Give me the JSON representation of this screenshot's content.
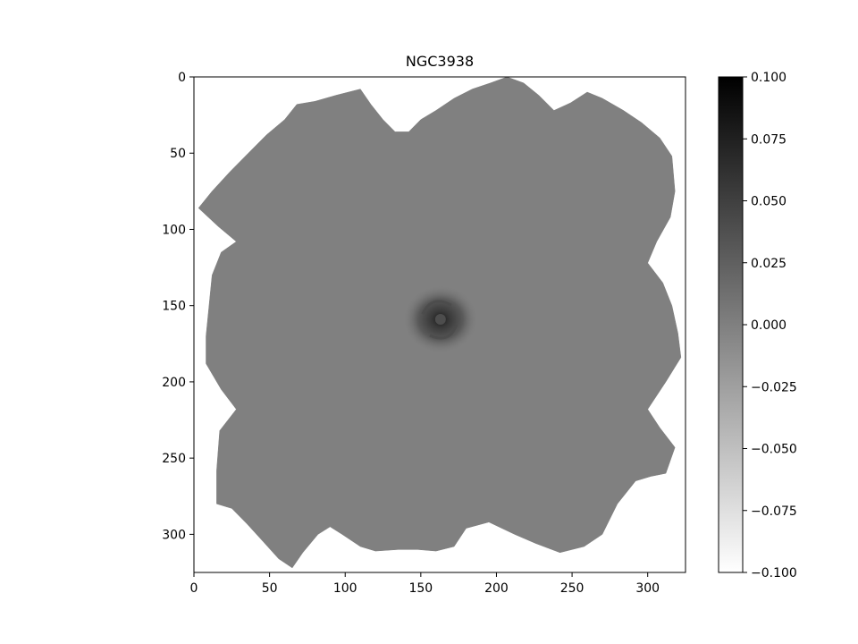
{
  "chart_data": {
    "type": "heatmap",
    "title": "NGC3938",
    "xlabel": "",
    "ylabel": "",
    "colormap": "gray_r",
    "colorbar_range": [
      -0.1,
      0.1
    ],
    "x_range": [
      0,
      325
    ],
    "y_range": [
      325,
      0
    ],
    "x_ticks": [
      0,
      50,
      100,
      150,
      200,
      250,
      300
    ],
    "y_ticks": [
      0,
      50,
      100,
      150,
      200,
      250,
      300
    ],
    "x_tick_labels": [
      "0",
      "50",
      "100",
      "150",
      "200",
      "250",
      "300"
    ],
    "y_tick_labels": [
      "0",
      "50",
      "100",
      "150",
      "200",
      "250",
      "300"
    ],
    "colorbar_ticks": [
      0.1,
      0.075,
      0.05,
      0.025,
      0.0,
      -0.025,
      -0.05,
      -0.075,
      -0.1
    ],
    "colorbar_tick_labels": [
      "0.100",
      "0.075",
      "0.050",
      "0.025",
      "0.000",
      "−0.025",
      "−0.050",
      "−0.075",
      "−0.100"
    ],
    "background_value": 0.0,
    "footprint_polygon": [
      [
        3,
        86
      ],
      [
        12,
        75
      ],
      [
        24,
        62
      ],
      [
        36,
        50
      ],
      [
        48,
        38
      ],
      [
        60,
        28
      ],
      [
        68,
        18
      ],
      [
        80,
        16
      ],
      [
        94,
        12
      ],
      [
        110,
        8
      ],
      [
        117,
        18
      ],
      [
        125,
        28
      ],
      [
        133,
        36
      ],
      [
        142,
        36
      ],
      [
        150,
        28
      ],
      [
        160,
        22
      ],
      [
        172,
        14
      ],
      [
        184,
        8
      ],
      [
        196,
        4
      ],
      [
        207,
        0
      ],
      [
        218,
        4
      ],
      [
        228,
        12
      ],
      [
        238,
        22
      ],
      [
        249,
        17
      ],
      [
        260,
        10
      ],
      [
        270,
        14
      ],
      [
        284,
        22
      ],
      [
        296,
        30
      ],
      [
        308,
        40
      ],
      [
        316,
        52
      ],
      [
        318,
        75
      ],
      [
        315,
        92
      ],
      [
        306,
        108
      ],
      [
        300,
        122
      ],
      [
        310,
        135
      ],
      [
        316,
        150
      ],
      [
        320,
        168
      ],
      [
        322,
        184
      ],
      [
        312,
        200
      ],
      [
        300,
        218
      ],
      [
        308,
        230
      ],
      [
        318,
        243
      ],
      [
        312,
        260
      ],
      [
        302,
        262
      ],
      [
        292,
        265
      ],
      [
        280,
        280
      ],
      [
        270,
        300
      ],
      [
        258,
        308
      ],
      [
        242,
        312
      ],
      [
        226,
        306
      ],
      [
        212,
        300
      ],
      [
        195,
        292
      ],
      [
        180,
        296
      ],
      [
        172,
        308
      ],
      [
        160,
        311
      ],
      [
        148,
        310
      ],
      [
        135,
        310
      ],
      [
        120,
        311
      ],
      [
        110,
        308
      ],
      [
        98,
        300
      ],
      [
        90,
        295
      ],
      [
        82,
        300
      ],
      [
        72,
        312
      ],
      [
        65,
        322
      ],
      [
        56,
        316
      ],
      [
        46,
        305
      ],
      [
        35,
        293
      ],
      [
        25,
        283
      ],
      [
        15,
        280
      ],
      [
        15,
        258
      ],
      [
        17,
        232
      ],
      [
        28,
        218
      ],
      [
        18,
        205
      ],
      [
        8,
        188
      ],
      [
        8,
        170
      ],
      [
        10,
        150
      ],
      [
        12,
        130
      ],
      [
        18,
        115
      ],
      [
        28,
        108
      ],
      [
        16,
        98
      ],
      [
        3,
        86
      ]
    ],
    "galaxy_center": [
      163,
      159
    ],
    "galaxy_peak_value": 0.04
  }
}
